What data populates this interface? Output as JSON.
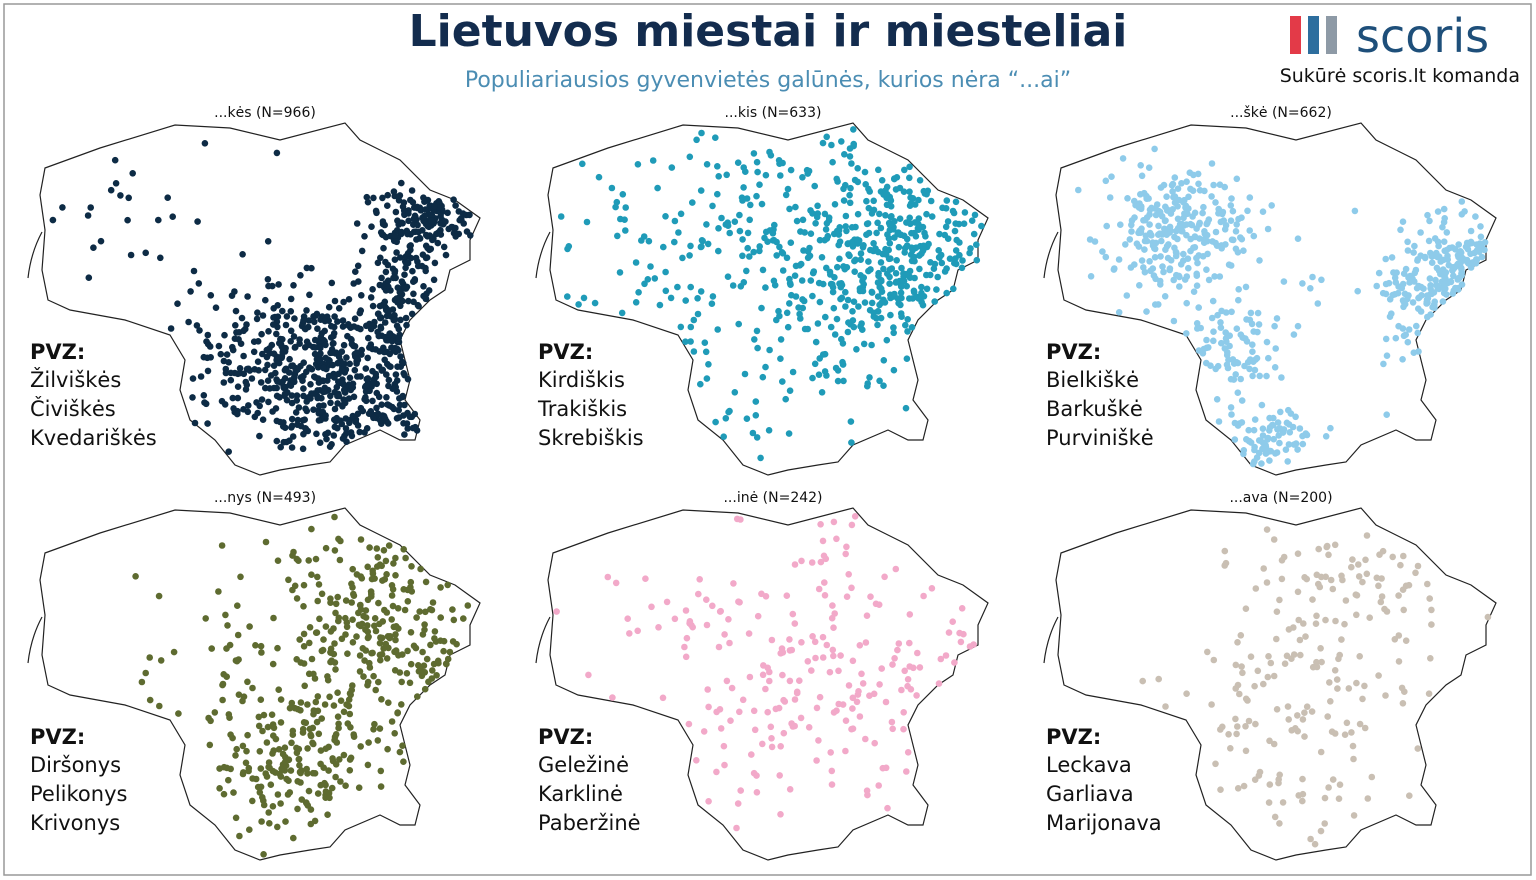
{
  "title": "Lietuvos miestai ir miesteliai",
  "subtitle": "Populiariausios gyvenvietės galūnės, kurios nėra “...ai”",
  "logo": "scoris",
  "credit": "Sukūrė scoris.lt komanda",
  "panels": [
    {
      "title": "...kės (N=966)",
      "example_heading": "PVZ:",
      "examples": [
        "Žilviškės",
        "Čiviškės",
        "Kvedariškės"
      ]
    },
    {
      "title": "...kis (N=633)",
      "example_heading": "PVZ:",
      "examples": [
        "Kirdiškis",
        "Trakiškis",
        "Skrebiškis"
      ]
    },
    {
      "title": "...škė (N=662)",
      "example_heading": "PVZ:",
      "examples": [
        "Bielkiškė",
        "Barkuškė",
        "Purviniškė"
      ]
    },
    {
      "title": "...nys (N=493)",
      "example_heading": "PVZ:",
      "examples": [
        "Diršonys",
        "Pelikonys",
        "Krivonys"
      ]
    },
    {
      "title": "...inė (N=242)",
      "example_heading": "PVZ:",
      "examples": [
        "Geležinė",
        "Karklinė",
        "Paberžinė"
      ]
    },
    {
      "title": "...ava (N=200)",
      "example_heading": "PVZ:",
      "examples": [
        "Leckava",
        "Garliava",
        "Marijonava"
      ]
    }
  ]
}
